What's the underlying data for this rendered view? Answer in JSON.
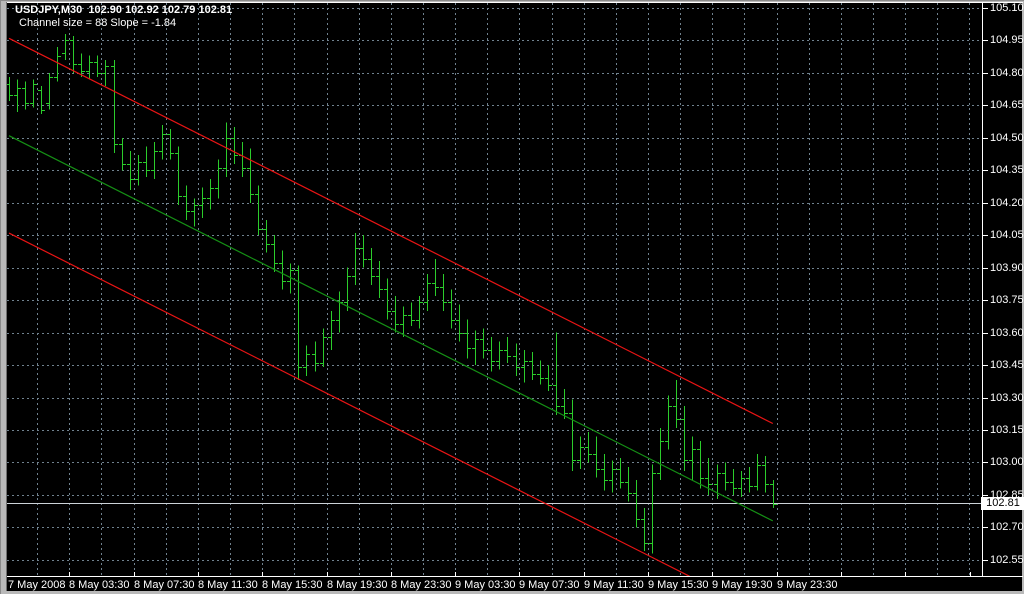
{
  "window": {
    "title_line1": "USDJPY,M30  102.90 102.92 102.79 102.81",
    "title_line2": "Channel size = 88 Slope = -1.84"
  },
  "quote": {
    "symbol": "USDJPY",
    "timeframe": "M30",
    "open": "102.90",
    "high": "102.92",
    "low": "102.79",
    "close": "102.81"
  },
  "price_axis": {
    "current_price": "102.81",
    "ticks": [
      "105.10",
      "104.95",
      "104.80",
      "104.65",
      "104.50",
      "104.35",
      "104.20",
      "104.05",
      "103.90",
      "103.75",
      "103.60",
      "103.45",
      "103.30",
      "103.15",
      "103.00",
      "102.85",
      "102.70",
      "102.55"
    ]
  },
  "time_axis": {
    "labels": [
      "7 May 2008",
      "8 May 03:30",
      "8 May 07:30",
      "8 May 11:30",
      "8 May 15:30",
      "8 May 19:30",
      "8 May 23:30",
      "9 May 03:30",
      "9 May 07:30",
      "9 May 11:30",
      "9 May 15:30",
      "9 May 19:30",
      "9 May 23:30"
    ]
  },
  "chart_data": {
    "type": "ohlc-bar",
    "title": "USDJPY,M30",
    "subtitle": "Channel size = 88 Slope = -1.84",
    "symbol": "USDJPY",
    "timeframe": "M30",
    "ylim": [
      102.45,
      105.15
    ],
    "grid": "on",
    "x_labels": [
      "7 May 2008",
      "8 May 03:30",
      "8 May 07:30",
      "8 May 11:30",
      "8 May 15:30",
      "8 May 19:30",
      "8 May 23:30",
      "9 May 03:30",
      "9 May 07:30",
      "9 May 11:30",
      "9 May 15:30",
      "9 May 19:30",
      "9 May 23:30"
    ],
    "bars_per_label": 8,
    "last_quote": {
      "open": 102.9,
      "high": 102.92,
      "low": 102.79,
      "close": 102.81
    },
    "bars": [
      [
        104.75,
        104.78,
        104.67,
        104.7
      ],
      [
        104.7,
        104.77,
        104.62,
        104.73
      ],
      [
        104.73,
        104.76,
        104.63,
        104.66
      ],
      [
        104.66,
        104.77,
        104.64,
        104.75
      ],
      [
        104.72,
        104.74,
        104.61,
        104.63
      ],
      [
        104.66,
        104.8,
        104.63,
        104.78
      ],
      [
        104.78,
        104.92,
        104.76,
        104.88
      ],
      [
        104.89,
        104.98,
        104.86,
        104.95
      ],
      [
        104.95,
        104.97,
        104.8,
        104.84
      ],
      [
        104.84,
        104.89,
        104.78,
        104.81
      ],
      [
        104.81,
        104.88,
        104.77,
        104.85
      ],
      [
        104.85,
        104.88,
        104.78,
        104.8
      ],
      [
        104.8,
        104.86,
        104.74,
        104.83
      ],
      [
        104.83,
        104.86,
        104.43,
        104.47
      ],
      [
        104.47,
        104.5,
        104.35,
        104.38
      ],
      [
        104.38,
        104.44,
        104.26,
        104.31
      ],
      [
        104.31,
        104.42,
        104.28,
        104.39
      ],
      [
        104.39,
        104.46,
        104.32,
        104.35
      ],
      [
        104.35,
        104.48,
        104.31,
        104.44
      ],
      [
        104.44,
        104.56,
        104.4,
        104.52
      ],
      [
        104.52,
        104.54,
        104.4,
        104.43
      ],
      [
        104.43,
        104.46,
        104.19,
        104.23
      ],
      [
        104.23,
        104.28,
        104.12,
        104.16
      ],
      [
        104.16,
        104.22,
        104.09,
        104.19
      ],
      [
        104.19,
        104.27,
        104.13,
        104.22
      ],
      [
        104.22,
        104.31,
        104.17,
        104.27
      ],
      [
        104.27,
        104.4,
        104.22,
        104.36
      ],
      [
        104.36,
        104.57,
        104.32,
        104.5
      ],
      [
        104.5,
        104.55,
        104.38,
        104.42
      ],
      [
        104.42,
        104.48,
        104.32,
        104.36
      ],
      [
        104.36,
        104.45,
        104.2,
        104.24
      ],
      [
        104.24,
        104.28,
        104.05,
        104.08
      ],
      [
        104.08,
        104.12,
        103.97,
        104.01
      ],
      [
        104.01,
        104.05,
        103.88,
        103.92
      ],
      [
        103.92,
        103.98,
        103.8,
        103.84
      ],
      [
        103.84,
        103.92,
        103.78,
        103.89
      ],
      [
        103.89,
        103.91,
        103.38,
        103.44
      ],
      [
        103.44,
        103.54,
        103.4,
        103.5
      ],
      [
        103.5,
        103.56,
        103.42,
        103.46
      ],
      [
        103.46,
        103.62,
        103.44,
        103.58
      ],
      [
        103.58,
        103.7,
        103.52,
        103.66
      ],
      [
        103.66,
        103.79,
        103.6,
        103.74
      ],
      [
        103.74,
        103.9,
        103.7,
        103.86
      ],
      [
        103.86,
        104.06,
        103.82,
        103.99
      ],
      [
        103.99,
        104.05,
        103.9,
        103.94
      ],
      [
        103.94,
        103.99,
        103.82,
        103.86
      ],
      [
        103.86,
        103.93,
        103.76,
        103.8
      ],
      [
        103.8,
        103.85,
        103.66,
        103.7
      ],
      [
        103.7,
        103.77,
        103.6,
        103.64
      ],
      [
        103.64,
        103.72,
        103.58,
        103.68
      ],
      [
        103.68,
        103.74,
        103.63,
        103.66
      ],
      [
        103.66,
        103.77,
        103.62,
        103.74
      ],
      [
        103.74,
        103.87,
        103.7,
        103.83
      ],
      [
        103.83,
        103.94,
        103.77,
        103.81
      ],
      [
        103.81,
        103.87,
        103.7,
        103.74
      ],
      [
        103.74,
        103.8,
        103.62,
        103.66
      ],
      [
        103.66,
        103.73,
        103.56,
        103.6
      ],
      [
        103.6,
        103.66,
        103.48,
        103.53
      ],
      [
        103.53,
        103.61,
        103.45,
        103.57
      ],
      [
        103.57,
        103.62,
        103.48,
        103.52
      ],
      [
        103.52,
        103.58,
        103.42,
        103.47
      ],
      [
        103.47,
        103.56,
        103.43,
        103.52
      ],
      [
        103.52,
        103.58,
        103.46,
        103.49
      ],
      [
        103.49,
        103.55,
        103.4,
        103.44
      ],
      [
        103.44,
        103.52,
        103.37,
        103.47
      ],
      [
        103.47,
        103.51,
        103.38,
        103.41
      ],
      [
        103.41,
        103.47,
        103.36,
        103.39
      ],
      [
        103.39,
        103.45,
        103.33,
        103.36
      ],
      [
        103.36,
        103.6,
        103.22,
        103.26
      ],
      [
        103.26,
        103.34,
        103.2,
        103.23
      ],
      [
        103.23,
        103.29,
        102.96,
        103.01
      ],
      [
        103.01,
        103.12,
        102.97,
        103.07
      ],
      [
        103.07,
        103.14,
        103.0,
        103.04
      ],
      [
        103.04,
        103.12,
        102.93,
        102.97
      ],
      [
        102.97,
        103.04,
        102.87,
        102.92
      ],
      [
        102.92,
        103.01,
        102.86,
        102.97
      ],
      [
        102.97,
        103.02,
        102.88,
        102.91
      ],
      [
        102.91,
        102.98,
        102.82,
        102.86
      ],
      [
        102.86,
        102.92,
        102.7,
        102.74
      ],
      [
        102.74,
        102.79,
        102.59,
        102.63
      ],
      [
        102.63,
        102.99,
        102.58,
        102.95
      ],
      [
        102.95,
        103.16,
        102.92,
        103.1
      ],
      [
        103.1,
        103.31,
        103.06,
        103.26
      ],
      [
        103.26,
        103.38,
        103.16,
        103.2
      ],
      [
        103.2,
        103.26,
        102.96,
        103.01
      ],
      [
        103.01,
        103.12,
        102.92,
        103.06
      ],
      [
        103.06,
        103.1,
        102.88,
        102.93
      ],
      [
        102.93,
        103.02,
        102.85,
        102.9
      ],
      [
        102.9,
        102.99,
        102.83,
        102.95
      ],
      [
        102.95,
        103.0,
        102.87,
        102.91
      ],
      [
        102.91,
        102.97,
        102.85,
        102.88
      ],
      [
        102.88,
        102.96,
        102.84,
        102.93
      ],
      [
        102.93,
        102.98,
        102.86,
        102.89
      ],
      [
        102.89,
        103.04,
        102.87,
        102.99
      ],
      [
        102.99,
        103.03,
        102.86,
        102.9
      ],
      [
        102.9,
        102.92,
        102.79,
        102.81
      ]
    ],
    "regression_channel": {
      "size": 88,
      "slope": -1.84,
      "upper": {
        "start_price": 104.96,
        "end_price": 103.18
      },
      "middle": {
        "start_price": 104.51,
        "end_price": 102.73
      },
      "lower": {
        "start_price": 104.06,
        "end_price": 102.28
      }
    },
    "colors": {
      "background": "#000000",
      "bars": "#2bcc2b",
      "grid": "#70828f",
      "channel_outer": "#e81414",
      "channel_middle": "#159015",
      "axis_text": "#ffffff",
      "axis_line": "#ffffff",
      "current_price_line": "#ccd3d8",
      "current_price_box_bg": "#ffffff",
      "current_price_box_text": "#000000"
    }
  }
}
